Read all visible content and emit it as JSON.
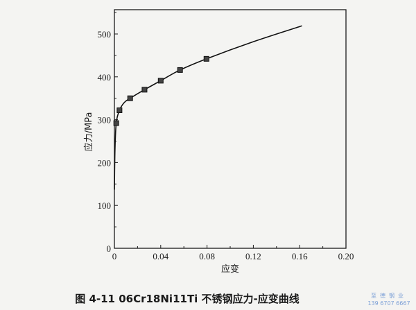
{
  "chart_data": {
    "type": "line",
    "title": "图 4-11   06Cr18Ni11Ti 不锈钢应力-应变曲线",
    "xlabel": "应变",
    "ylabel": "应力/MPa",
    "xlim": [
      0,
      0.2
    ],
    "ylim": [
      0,
      550
    ],
    "xticks": [
      "0",
      "0.04",
      "0.08",
      "0.12",
      "0.16",
      "0.20"
    ],
    "yticks": [
      "0",
      "100",
      "200",
      "300",
      "400",
      "500"
    ],
    "grid": false,
    "curve": [
      {
        "x": 0,
        "y": 137
      },
      {
        "x": 0.0005,
        "y": 230
      },
      {
        "x": 0.0016,
        "y": 292
      },
      {
        "x": 0.0044,
        "y": 322
      },
      {
        "x": 0.0085,
        "y": 340
      },
      {
        "x": 0.0136,
        "y": 350
      },
      {
        "x": 0.026,
        "y": 370
      },
      {
        "x": 0.04,
        "y": 391
      },
      {
        "x": 0.0567,
        "y": 416
      },
      {
        "x": 0.0795,
        "y": 442
      },
      {
        "x": 0.12,
        "y": 482
      },
      {
        "x": 0.162,
        "y": 519
      }
    ],
    "markers": [
      {
        "x": 0.0016,
        "y": 292
      },
      {
        "x": 0.0044,
        "y": 322
      },
      {
        "x": 0.0136,
        "y": 350
      },
      {
        "x": 0.026,
        "y": 370
      },
      {
        "x": 0.04,
        "y": 391
      },
      {
        "x": 0.0567,
        "y": 416
      },
      {
        "x": 0.0795,
        "y": 442
      }
    ]
  },
  "watermark": {
    "name": "至德钢业",
    "phone": "139 6707 6667"
  },
  "colors": {
    "line": "#111111",
    "marker": "#444444",
    "watermark": "#7b9fd6"
  }
}
